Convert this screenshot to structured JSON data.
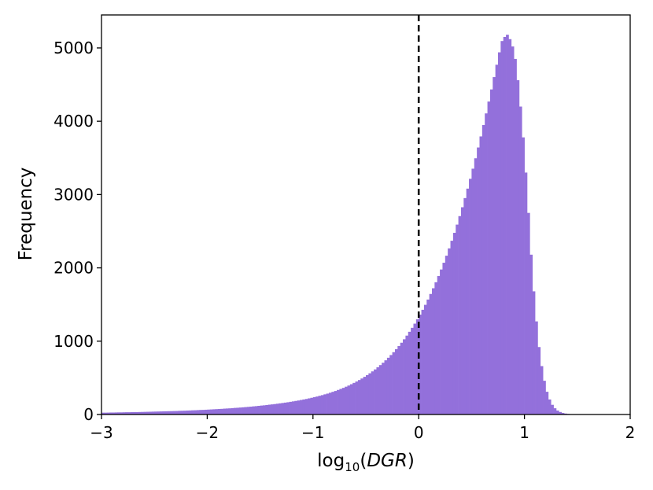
{
  "chart_data": {
    "type": "histogram",
    "title": "",
    "xlabel": {
      "base": "log",
      "subscript": "10",
      "open": "(",
      "var": "DGR",
      "close": ")"
    },
    "ylabel": "Frequency",
    "xlim": [
      -3,
      2
    ],
    "ylim": [
      0,
      5450
    ],
    "xticks": [
      -3,
      -2,
      -1,
      0,
      1,
      2
    ],
    "xtick_labels": [
      "−3",
      "−2",
      "−1",
      "0",
      "1",
      "2"
    ],
    "yticks": [
      0,
      1000,
      2000,
      3000,
      4000,
      5000
    ],
    "ytick_labels": [
      "0",
      "1000",
      "2000",
      "3000",
      "4000",
      "5000"
    ],
    "bar_color": "#9370DB",
    "bin_width": 0.025,
    "bin_start": -3.0,
    "reference_line": {
      "x": 0,
      "style": "dashed",
      "color": "#000000"
    },
    "grid": false,
    "legend": false,
    "counts": [
      25,
      25,
      26,
      27,
      27,
      28,
      29,
      29,
      30,
      31,
      31,
      32,
      33,
      33,
      34,
      35,
      36,
      37,
      38,
      39,
      40,
      41,
      42,
      43,
      44,
      45,
      46,
      47,
      48,
      50,
      51,
      52,
      54,
      55,
      57,
      58,
      60,
      62,
      63,
      65,
      67,
      69,
      71,
      73,
      75,
      77,
      80,
      82,
      84,
      87,
      90,
      92,
      95,
      98,
      101,
      104,
      107,
      111,
      114,
      118,
      122,
      125,
      129,
      134,
      138,
      142,
      147,
      152,
      157,
      162,
      167,
      173,
      179,
      185,
      191,
      198,
      205,
      212,
      220,
      228,
      236,
      245,
      255,
      264,
      275,
      285,
      297,
      309,
      321,
      335,
      349,
      363,
      379,
      395,
      413,
      431,
      450,
      470,
      491,
      514,
      537,
      562,
      588,
      615,
      644,
      674,
      706,
      739,
      774,
      811,
      850,
      891,
      934,
      979,
      1026,
      1076,
      1128,
      1182,
      1239,
      1299,
      1362,
      1428,
      1496,
      1568,
      1644,
      1722,
      1804,
      1889,
      1978,
      2070,
      2166,
      2266,
      2370,
      2478,
      2590,
      2706,
      2827,
      2952,
      3081,
      3215,
      3353,
      3495,
      3642,
      3793,
      3948,
      4107,
      4269,
      4434,
      4602,
      4771,
      4940,
      5094,
      5150,
      5180,
      5120,
      5020,
      4850,
      4560,
      4200,
      3780,
      3300,
      2750,
      2180,
      1680,
      1270,
      920,
      660,
      460,
      310,
      205,
      132,
      85,
      54,
      34,
      21,
      13,
      8,
      5,
      3,
      2
    ]
  }
}
